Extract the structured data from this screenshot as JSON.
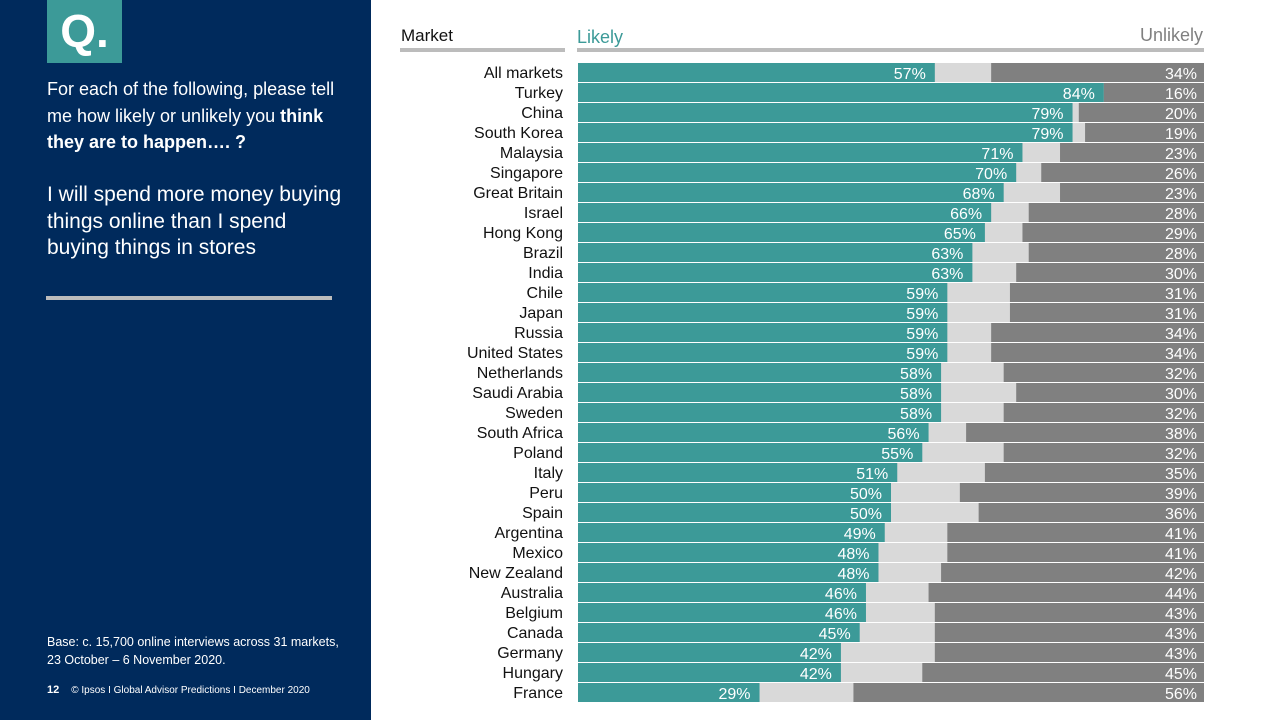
{
  "sidebar": {
    "badge": "Q.",
    "question_plain": "For each of the following, please tell me how likely or unlikely you ",
    "question_bold": "think they are to happen…. ?",
    "statement": "I will spend more money buying things online than I spend buying things in stores",
    "base_note": "Base: c. 15,700 online interviews across 31 markets,  23 October – 6 November 2020.",
    "page_number": "12",
    "footer_text": "© Ipsos I Global Advisor Predictions I December 2020"
  },
  "colors": {
    "sidebar_bg": "#002a5c",
    "likely": "#3c9a98",
    "neutral": "#d9d9d9",
    "unlikely": "#808080",
    "rule": "#bcbcbc"
  },
  "chart_data": {
    "type": "bar",
    "orientation": "horizontal-stacked-100",
    "column_header": "Market",
    "series": [
      {
        "name": "Likely",
        "values": [
          57,
          84,
          79,
          79,
          71,
          70,
          68,
          66,
          65,
          63,
          63,
          59,
          59,
          59,
          59,
          58,
          58,
          58,
          56,
          55,
          51,
          50,
          50,
          49,
          48,
          48,
          46,
          46,
          45,
          42,
          42,
          29
        ]
      },
      {
        "name": "Unlikely",
        "values": [
          34,
          16,
          20,
          19,
          23,
          26,
          23,
          28,
          29,
          28,
          30,
          31,
          31,
          34,
          34,
          32,
          30,
          32,
          38,
          32,
          35,
          39,
          36,
          41,
          41,
          42,
          44,
          43,
          43,
          43,
          45,
          56
        ]
      }
    ],
    "categories": [
      "All markets",
      "Turkey",
      "China",
      "South Korea",
      "Malaysia",
      "Singapore",
      "Great Britain",
      "Israel",
      "Hong Kong",
      "Brazil",
      "India",
      "Chile",
      "Japan",
      "Russia",
      "United States",
      "Netherlands",
      "Saudi Arabia",
      "Sweden",
      "South Africa",
      "Poland",
      "Italy",
      "Peru",
      "Spain",
      "Argentina",
      "Mexico",
      "New Zealand",
      "Australia",
      "Belgium",
      "Canada",
      "Germany",
      "Hungary",
      "France"
    ],
    "xlim": [
      0,
      100
    ],
    "value_suffix": "%",
    "grid": false,
    "legend": "top"
  }
}
